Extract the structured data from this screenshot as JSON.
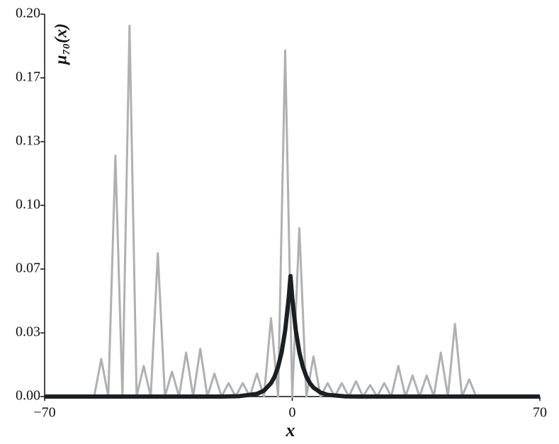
{
  "chart_data": {
    "type": "line",
    "x_label": "x",
    "y_label": "μ₇₀(x)",
    "xlim": [
      -70,
      70
    ],
    "xticks": [
      {
        "value": -70,
        "label": "−70"
      },
      0,
      70
    ],
    "ylim": [
      0,
      0.2
    ],
    "yticks": [
      {
        "value": 0,
        "label": "0.00"
      },
      {
        "value": 0.0333,
        "label": "0.03"
      },
      {
        "value": 0.0667,
        "label": "0.07"
      },
      {
        "value": 0.1,
        "label": "0.10"
      },
      {
        "value": 0.1333,
        "label": "0.13"
      },
      {
        "value": 0.1667,
        "label": "0.17"
      },
      {
        "value": 0.2,
        "label": "0.20"
      }
    ],
    "series": [
      {
        "color": "#b0b0b0",
        "x": [
          -58,
          -56,
          -54,
          -52,
          -50,
          -48,
          -46,
          -44,
          -42,
          -40,
          -38,
          -36,
          -34,
          -32,
          -30,
          -28,
          -26,
          -24,
          -22,
          -20,
          -18,
          -16,
          -14,
          -12,
          -10,
          -8,
          -6,
          -4,
          -2,
          0,
          2,
          4,
          6,
          8,
          10,
          12,
          14,
          16,
          18,
          20,
          22,
          24,
          26,
          28,
          30,
          32,
          34,
          36,
          38,
          40,
          42,
          44,
          46,
          48,
          50,
          52,
          54
        ],
        "values": [
          0,
          0,
          0.0196,
          0,
          0.126,
          0,
          0.194,
          0,
          0.016,
          0,
          0.075,
          0,
          0.013,
          0,
          0.023,
          0,
          0.025,
          0,
          0.012,
          0,
          0.007,
          0,
          0.007,
          0,
          0.012,
          0,
          0.041,
          0,
          0.181,
          0,
          0.088,
          0,
          0.021,
          0,
          0.007,
          0,
          0.007,
          0,
          0.008,
          0,
          0.006,
          0,
          0.007,
          0,
          0.016,
          0,
          0.011,
          0,
          0.011,
          0,
          0.023,
          0,
          0.038,
          0,
          0.009,
          0,
          0
        ]
      },
      {
        "color": "#1a1f22",
        "x": [
          -70,
          -60,
          -50,
          -40,
          -30,
          -20,
          -15,
          -10,
          -8,
          -6,
          -5,
          -4,
          -3,
          -2,
          -1,
          -0.5,
          0,
          1,
          2,
          3,
          4,
          5,
          6,
          8,
          10,
          15,
          20,
          30,
          40,
          50,
          60,
          70
        ],
        "values": [
          0,
          0,
          0,
          0,
          0,
          0,
          0.0002,
          0.0014,
          0.0031,
          0.007,
          0.0104,
          0.0156,
          0.0232,
          0.0346,
          0.0516,
          0.063,
          0.0516,
          0.0346,
          0.0232,
          0.0156,
          0.0104,
          0.007,
          0.0047,
          0.0021,
          0.0009,
          0.0001,
          0,
          0,
          0,
          0,
          0,
          0
        ]
      }
    ]
  }
}
